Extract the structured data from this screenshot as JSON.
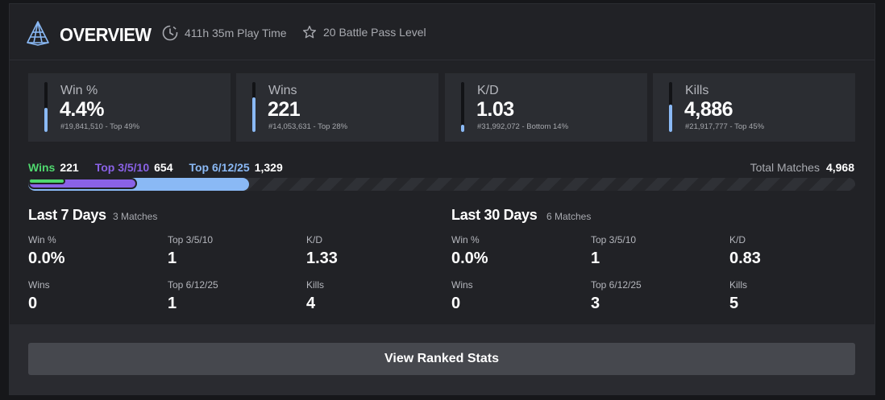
{
  "header": {
    "title": "OVERVIEW",
    "play_time": "411h 35m Play Time",
    "battle_pass": "20 Battle Pass Level",
    "logo_icon": "pyramid-logo-icon",
    "clock_icon": "clock-icon",
    "star_icon": "star-icon"
  },
  "stats": [
    {
      "label": "Win %",
      "value": "4.4%",
      "sub": "#19,841,510 - Top 49%",
      "bar_level": 0.48
    },
    {
      "label": "Wins",
      "value": "221",
      "sub": "#14,053,631 - Top 28%",
      "bar_level": 0.7
    },
    {
      "label": "K/D",
      "value": "1.03",
      "sub": "#31,992,072 - Bottom 14%",
      "bar_level": 0.14
    },
    {
      "label": "Kills",
      "value": "4,886",
      "sub": "#21,917,777 - Top 45%",
      "bar_level": 0.55
    }
  ],
  "progress": {
    "wins_label": "Wins",
    "wins_value": "221",
    "top3_label": "Top 3/5/10",
    "top3_value": "654",
    "top6_label": "Top 6/12/25",
    "top6_value": "1,329",
    "total_label": "Total Matches",
    "total_value": "4,968",
    "wins_fraction": 0.0445,
    "top3_fraction": 0.1316,
    "top6_fraction": 0.2675
  },
  "last7": {
    "title": "Last 7 Days",
    "count": "3 Matches",
    "win_pct_label": "Win %",
    "win_pct": "0.0%",
    "top3_label": "Top 3/5/10",
    "top3": "1",
    "kd_label": "K/D",
    "kd": "1.33",
    "wins_label": "Wins",
    "wins": "0",
    "top6_label": "Top 6/12/25",
    "top6": "1",
    "kills_label": "Kills",
    "kills": "4"
  },
  "last30": {
    "title": "Last 30 Days",
    "count": "6 Matches",
    "win_pct_label": "Win %",
    "win_pct": "0.0%",
    "top3_label": "Top 3/5/10",
    "top3": "1",
    "kd_label": "K/D",
    "kd": "0.83",
    "wins_label": "Wins",
    "wins": "0",
    "top6_label": "Top 6/12/25",
    "top6": "3",
    "kills_label": "Kills",
    "kills": "5"
  },
  "footer": {
    "button_label": "View Ranked Stats"
  },
  "colors": {
    "accent_blue": "#8ab9f5",
    "wins_green": "#4fd86e",
    "top3_purple": "#8a62e6",
    "top6_blue": "#8ab9f5"
  }
}
